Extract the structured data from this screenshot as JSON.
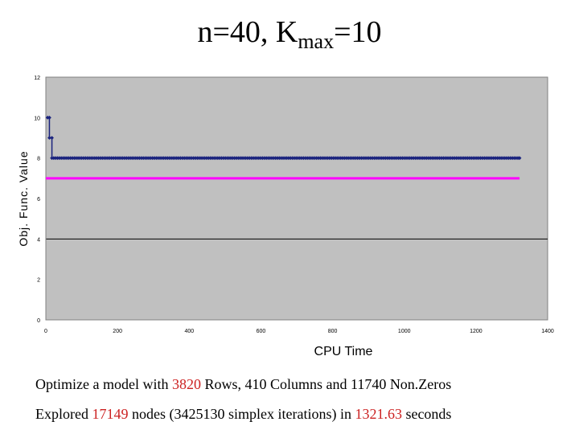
{
  "title": {
    "main": "n=40,  K",
    "sub": "max",
    "tail": "=10"
  },
  "chart_data": {
    "type": "line",
    "xlabel": "CPU Time",
    "ylabel": "Obj. Func. Value",
    "xlim": [
      0,
      1400
    ],
    "ylim": [
      0,
      12
    ],
    "xticks": [
      0,
      200,
      400,
      600,
      800,
      1000,
      1200,
      1400
    ],
    "yticks": [
      0,
      2,
      4,
      6,
      8,
      10,
      12
    ],
    "horizontal_gridlines": [
      4
    ],
    "grid": false,
    "plot_background": "#c0c0c0",
    "series": [
      {
        "color": "#1a237e",
        "marker": "diamond",
        "x_start": 0,
        "x_end": 1321.63,
        "points": [
          [
            5,
            10
          ],
          [
            10,
            10
          ],
          [
            10,
            9
          ],
          [
            17,
            9
          ],
          [
            17,
            8
          ],
          [
            1321.63,
            8
          ]
        ],
        "marker_spacing": 5.2
      },
      {
        "color": "#ff00ff",
        "marker": "none",
        "points": [
          [
            0,
            7
          ],
          [
            1321.63,
            7
          ]
        ]
      }
    ]
  },
  "captions": {
    "line1": {
      "prefix": "Optimize a model with ",
      "rows": "3820",
      "suffix": " Rows, 410 Columns and 11740 Non.Zeros"
    },
    "line2": {
      "prefix": "Explored ",
      "nodes": "17149",
      "middle": " nodes (3425130 simplex iterations) in ",
      "seconds": "1321.63",
      "suffix": " seconds"
    }
  }
}
